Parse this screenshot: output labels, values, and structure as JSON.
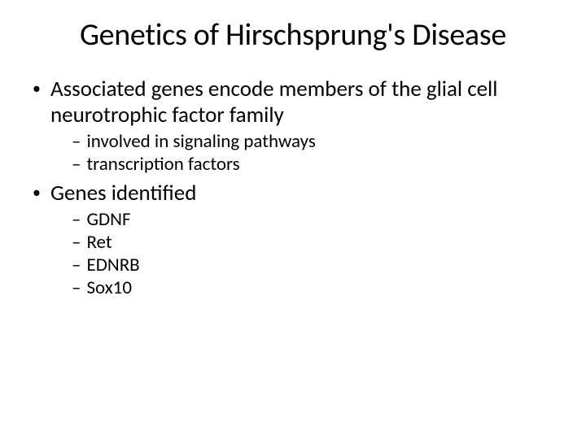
{
  "slide": {
    "title": "Genetics of Hirschsprung's Disease",
    "title_fontsize": 38,
    "body": [
      {
        "level": 1,
        "text": "Associated genes encode members of the glial cell neurotrophic factor family"
      },
      {
        "level": 2,
        "text": "involved in signaling pathways"
      },
      {
        "level": 2,
        "text": "transcription factors"
      },
      {
        "level": 1,
        "text": "Genes identified"
      },
      {
        "level": 2,
        "text": "GDNF"
      },
      {
        "level": 2,
        "text": "Ret"
      },
      {
        "level": 2,
        "text": "EDNRB"
      },
      {
        "level": 2,
        "text": "Sox10"
      }
    ],
    "level1_fontsize": 27,
    "level2_fontsize": 23,
    "level1_bullet": "•",
    "level2_bullet": "–",
    "background_color": "#ffffff",
    "text_color": "#000000",
    "font_family": "Calibri"
  }
}
